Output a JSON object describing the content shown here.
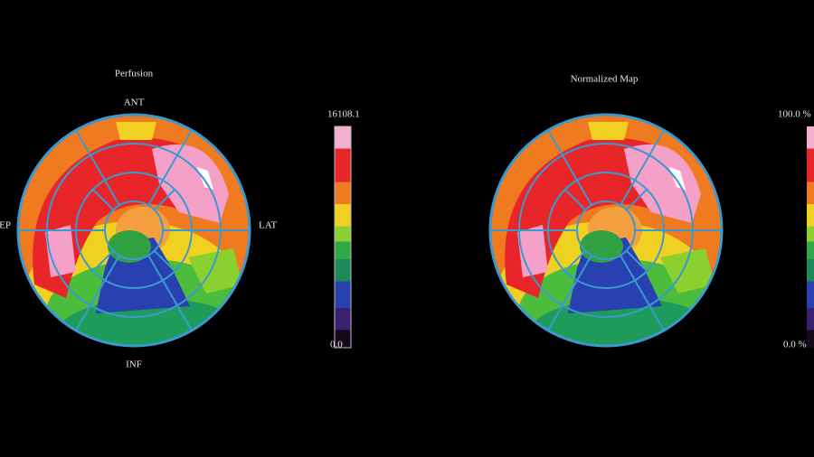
{
  "left_map": {
    "title": "Perfusion",
    "labels": {
      "top": "ANT",
      "right": "LAT",
      "bottom": "INF",
      "left": "SEP"
    },
    "scale_max": "16108.1",
    "scale_min": "0.0"
  },
  "right_map": {
    "title": "Normalized Map",
    "scale_max": "100.0 %",
    "scale_min": "0.0 %"
  }
}
